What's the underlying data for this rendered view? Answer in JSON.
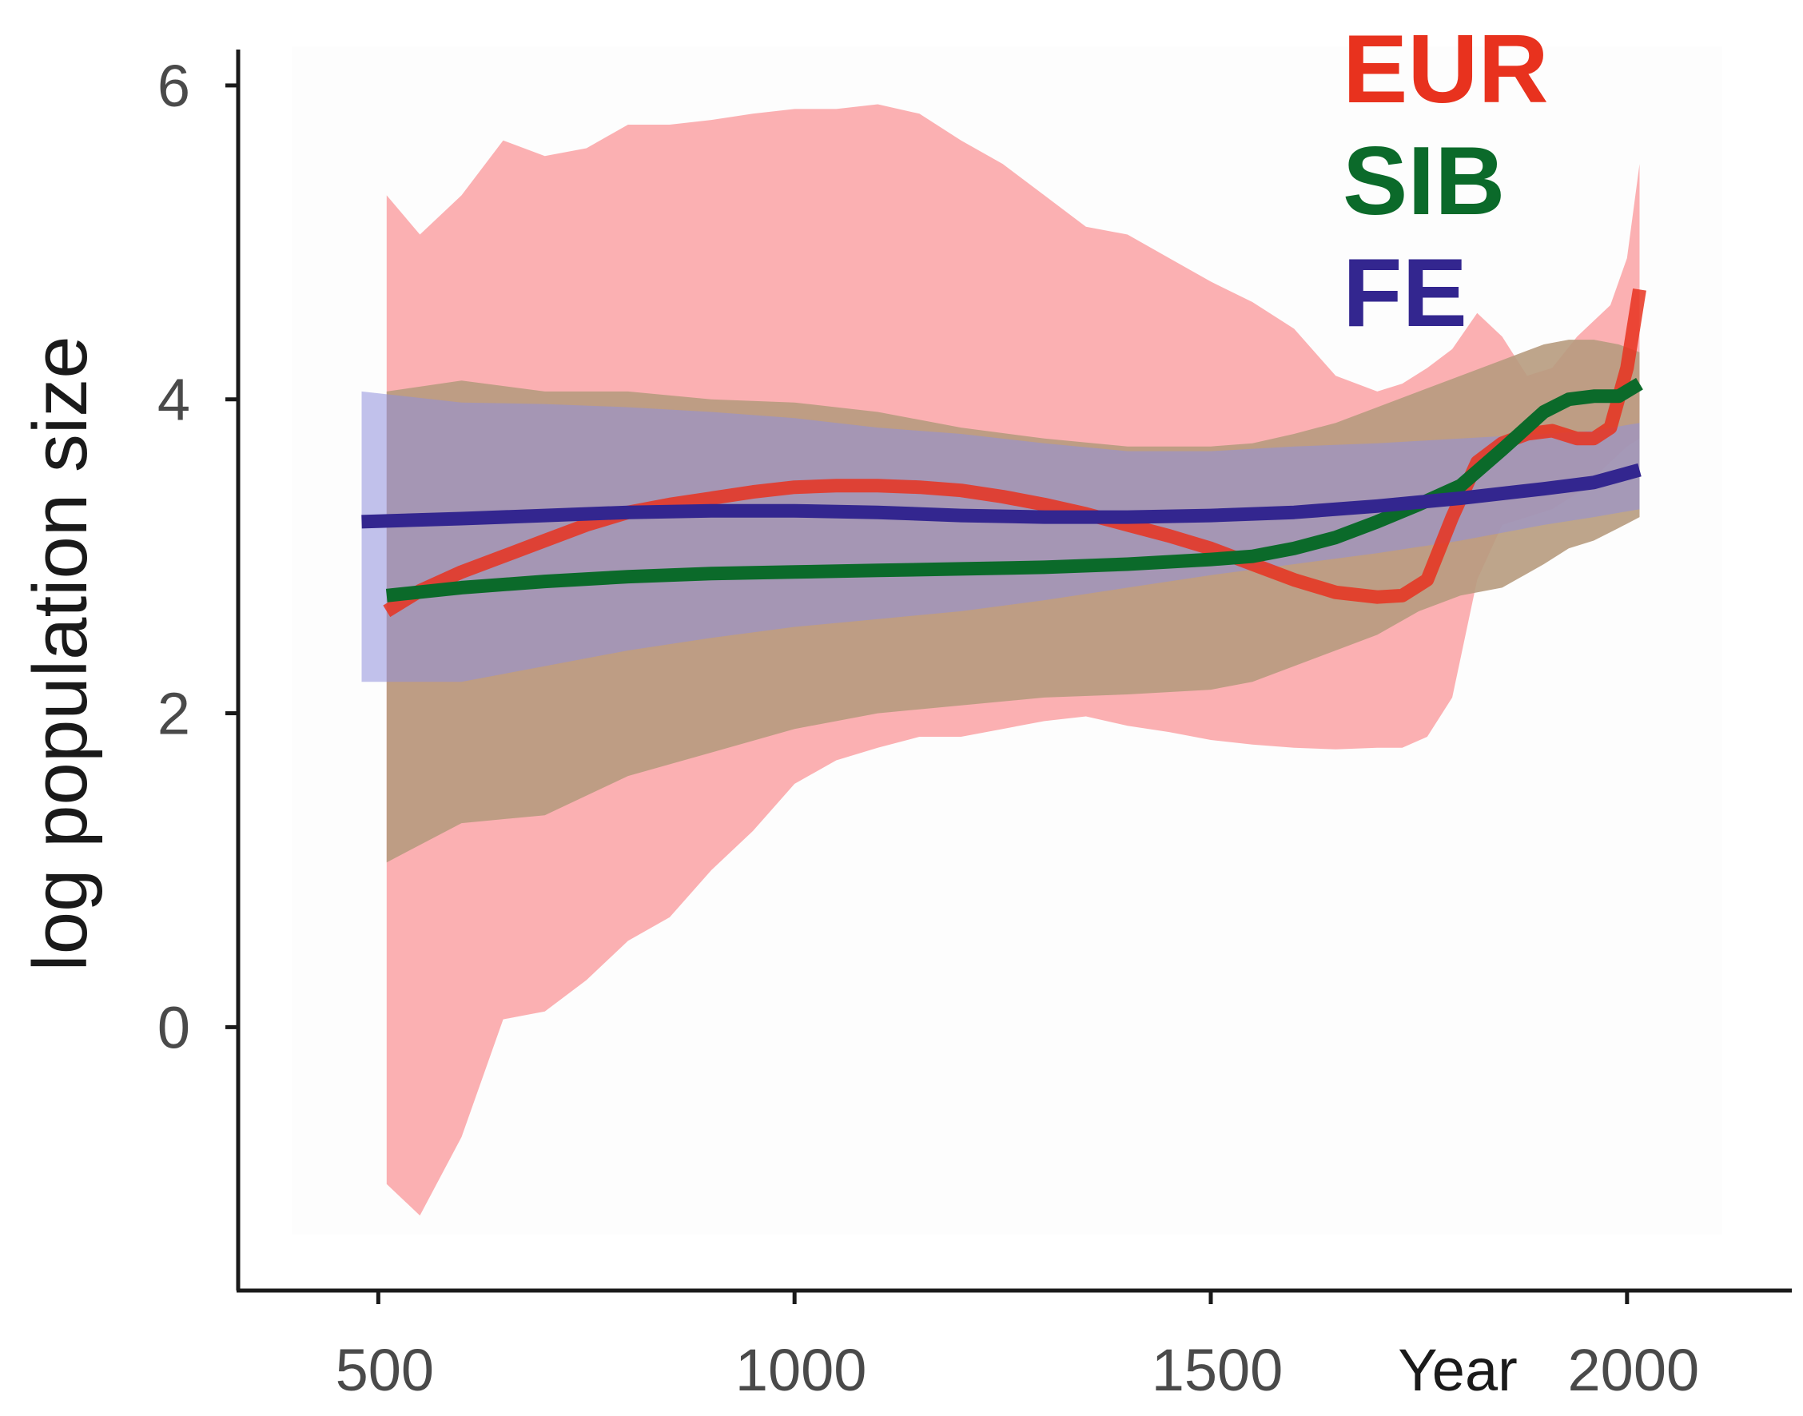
{
  "chart_data": {
    "type": "line",
    "title": "",
    "xlabel": "Year",
    "ylabel": "log population size",
    "xlim": [
      420,
      2100
    ],
    "ylim": [
      -1.5,
      6.3
    ],
    "xticks": [
      500,
      1000,
      1500,
      2000
    ],
    "yticks": [
      0,
      2,
      4,
      6
    ],
    "xtick_labels": [
      "500",
      "1000",
      "1500",
      "2000"
    ],
    "ytick_labels": [
      "0",
      "2",
      "4",
      "6"
    ],
    "legend": {
      "position": "top-right",
      "entries": [
        "EUR",
        "SIB",
        "FE"
      ]
    },
    "series": [
      {
        "name": "EUR",
        "color": "#e8321e",
        "band_color": "#fba9ab",
        "x": [
          510,
          550,
          600,
          650,
          700,
          750,
          800,
          850,
          900,
          950,
          1000,
          1050,
          1100,
          1150,
          1200,
          1250,
          1300,
          1350,
          1400,
          1450,
          1500,
          1550,
          1600,
          1650,
          1700,
          1730,
          1760,
          1790,
          1820,
          1850,
          1880,
          1910,
          1940,
          1960,
          1980,
          2000,
          2015
        ],
        "y": [
          2.65,
          2.78,
          2.9,
          3.0,
          3.1,
          3.2,
          3.28,
          3.33,
          3.37,
          3.41,
          3.44,
          3.45,
          3.45,
          3.44,
          3.42,
          3.38,
          3.33,
          3.27,
          3.2,
          3.13,
          3.05,
          2.95,
          2.85,
          2.77,
          2.74,
          2.75,
          2.85,
          3.25,
          3.6,
          3.72,
          3.78,
          3.8,
          3.75,
          3.75,
          3.82,
          4.2,
          4.7
        ],
        "upper": [
          5.3,
          5.05,
          5.3,
          5.65,
          5.55,
          5.6,
          5.75,
          5.75,
          5.78,
          5.82,
          5.85,
          5.85,
          5.88,
          5.82,
          5.65,
          5.5,
          5.3,
          5.1,
          5.05,
          4.9,
          4.75,
          4.62,
          4.45,
          4.15,
          4.05,
          4.1,
          4.2,
          4.32,
          4.55,
          4.4,
          4.15,
          4.2,
          4.4,
          4.5,
          4.6,
          4.9,
          5.5
        ],
        "lower": [
          -1.0,
          -1.2,
          -0.7,
          0.05,
          0.1,
          0.3,
          0.55,
          0.7,
          1.0,
          1.25,
          1.55,
          1.7,
          1.78,
          1.85,
          1.85,
          1.9,
          1.95,
          1.98,
          1.92,
          1.88,
          1.83,
          1.8,
          1.78,
          1.77,
          1.78,
          1.78,
          1.85,
          2.1,
          2.85,
          3.2,
          3.25,
          3.3,
          3.4,
          3.5,
          3.6,
          3.7,
          3.75
        ]
      },
      {
        "name": "SIB",
        "color": "#0b6a2a",
        "band_color": "#b79b7e",
        "x": [
          510,
          600,
          700,
          800,
          900,
          1000,
          1100,
          1200,
          1300,
          1400,
          1500,
          1550,
          1600,
          1650,
          1700,
          1750,
          1800,
          1850,
          1900,
          1930,
          1960,
          1990,
          2015
        ],
        "y": [
          2.75,
          2.8,
          2.84,
          2.87,
          2.89,
          2.9,
          2.91,
          2.92,
          2.93,
          2.95,
          2.98,
          3.0,
          3.05,
          3.12,
          3.22,
          3.33,
          3.45,
          3.68,
          3.92,
          4.0,
          4.02,
          4.02,
          4.1
        ],
        "upper": [
          4.05,
          4.12,
          4.05,
          4.05,
          4.0,
          3.98,
          3.92,
          3.82,
          3.75,
          3.7,
          3.7,
          3.72,
          3.78,
          3.85,
          3.95,
          4.05,
          4.15,
          4.25,
          4.35,
          4.38,
          4.38,
          4.35,
          4.3
        ],
        "lower": [
          1.05,
          1.3,
          1.35,
          1.6,
          1.75,
          1.9,
          2.0,
          2.05,
          2.1,
          2.12,
          2.15,
          2.2,
          2.3,
          2.4,
          2.5,
          2.65,
          2.75,
          2.8,
          2.95,
          3.05,
          3.1,
          3.18,
          3.25
        ]
      },
      {
        "name": "FE",
        "color": "#33268f",
        "band_color": "#8f8fdc",
        "x": [
          480,
          600,
          700,
          800,
          900,
          1000,
          1100,
          1200,
          1300,
          1400,
          1500,
          1600,
          1700,
          1800,
          1900,
          1960,
          2015
        ],
        "y": [
          3.22,
          3.24,
          3.26,
          3.28,
          3.29,
          3.29,
          3.28,
          3.26,
          3.25,
          3.25,
          3.26,
          3.28,
          3.32,
          3.37,
          3.43,
          3.47,
          3.55
        ],
        "upper": [
          4.05,
          3.98,
          3.97,
          3.95,
          3.92,
          3.88,
          3.82,
          3.78,
          3.72,
          3.67,
          3.67,
          3.7,
          3.72,
          3.75,
          3.78,
          3.8,
          3.85
        ],
        "lower": [
          2.2,
          2.2,
          2.3,
          2.4,
          2.48,
          2.55,
          2.6,
          2.65,
          2.72,
          2.8,
          2.88,
          2.95,
          3.02,
          3.1,
          3.2,
          3.25,
          3.3
        ]
      }
    ]
  }
}
